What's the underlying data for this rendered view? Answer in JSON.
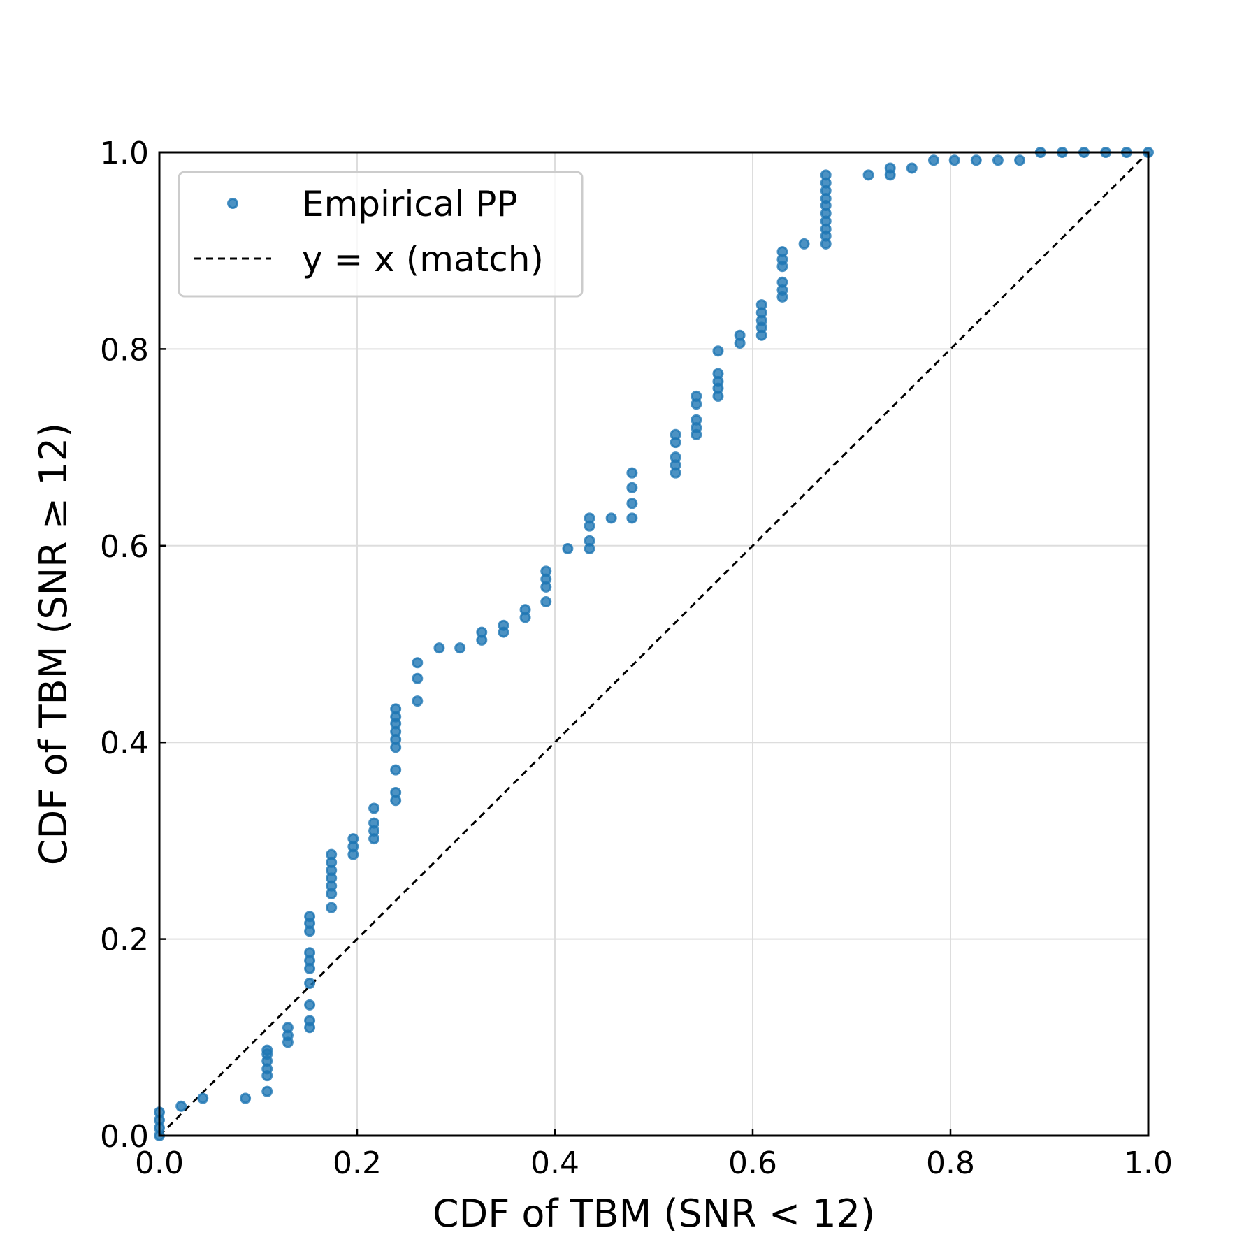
{
  "chart_data": {
    "type": "scatter",
    "title": "",
    "xlabel": "CDF of TBM (SNR < 12)",
    "ylabel": "CDF of TBM (SNR ≥ 12)",
    "xlim": [
      0,
      1
    ],
    "ylim": [
      0,
      1
    ],
    "xticks": [
      "0.0",
      "0.2",
      "0.4",
      "0.6",
      "0.8",
      "1.0"
    ],
    "yticks": [
      "0.0",
      "0.2",
      "0.4",
      "0.6",
      "0.8",
      "1.0"
    ],
    "grid": true,
    "legend_position": "top-left",
    "colors": {
      "points": "#1f77b4",
      "reference": "#000000",
      "grid": "#dddddd"
    },
    "series": [
      {
        "name": "Empirical PP",
        "kind": "points",
        "points": [
          [
            0.0,
            0.0
          ],
          [
            0.0,
            0.008
          ],
          [
            0.0,
            0.016
          ],
          [
            0.0,
            0.024
          ],
          [
            0.022,
            0.03
          ],
          [
            0.044,
            0.038
          ],
          [
            0.087,
            0.038
          ],
          [
            0.109,
            0.045
          ],
          [
            0.109,
            0.061
          ],
          [
            0.109,
            0.068
          ],
          [
            0.109,
            0.076
          ],
          [
            0.109,
            0.083
          ],
          [
            0.109,
            0.087
          ],
          [
            0.13,
            0.095
          ],
          [
            0.13,
            0.102
          ],
          [
            0.13,
            0.11
          ],
          [
            0.152,
            0.11
          ],
          [
            0.152,
            0.117
          ],
          [
            0.152,
            0.133
          ],
          [
            0.152,
            0.155
          ],
          [
            0.152,
            0.17
          ],
          [
            0.152,
            0.178
          ],
          [
            0.152,
            0.186
          ],
          [
            0.152,
            0.208
          ],
          [
            0.152,
            0.216
          ],
          [
            0.152,
            0.223
          ],
          [
            0.174,
            0.232
          ],
          [
            0.174,
            0.246
          ],
          [
            0.174,
            0.254
          ],
          [
            0.174,
            0.262
          ],
          [
            0.174,
            0.27
          ],
          [
            0.174,
            0.278
          ],
          [
            0.174,
            0.286
          ],
          [
            0.196,
            0.286
          ],
          [
            0.196,
            0.294
          ],
          [
            0.196,
            0.302
          ],
          [
            0.217,
            0.302
          ],
          [
            0.217,
            0.31
          ],
          [
            0.217,
            0.318
          ],
          [
            0.217,
            0.333
          ],
          [
            0.239,
            0.341
          ],
          [
            0.239,
            0.349
          ],
          [
            0.239,
            0.372
          ],
          [
            0.239,
            0.395
          ],
          [
            0.239,
            0.403
          ],
          [
            0.239,
            0.411
          ],
          [
            0.239,
            0.419
          ],
          [
            0.239,
            0.426
          ],
          [
            0.239,
            0.434
          ],
          [
            0.261,
            0.442
          ],
          [
            0.261,
            0.465
          ],
          [
            0.261,
            0.481
          ],
          [
            0.283,
            0.496
          ],
          [
            0.304,
            0.496
          ],
          [
            0.326,
            0.504
          ],
          [
            0.326,
            0.512
          ],
          [
            0.348,
            0.512
          ],
          [
            0.348,
            0.519
          ],
          [
            0.37,
            0.527
          ],
          [
            0.37,
            0.535
          ],
          [
            0.391,
            0.543
          ],
          [
            0.391,
            0.558
          ],
          [
            0.391,
            0.566
          ],
          [
            0.391,
            0.574
          ],
          [
            0.413,
            0.597
          ],
          [
            0.435,
            0.597
          ],
          [
            0.435,
            0.605
          ],
          [
            0.435,
            0.62
          ],
          [
            0.435,
            0.628
          ],
          [
            0.457,
            0.628
          ],
          [
            0.478,
            0.628
          ],
          [
            0.478,
            0.643
          ],
          [
            0.478,
            0.659
          ],
          [
            0.478,
            0.674
          ],
          [
            0.522,
            0.674
          ],
          [
            0.522,
            0.682
          ],
          [
            0.522,
            0.69
          ],
          [
            0.522,
            0.705
          ],
          [
            0.522,
            0.713
          ],
          [
            0.543,
            0.713
          ],
          [
            0.543,
            0.72
          ],
          [
            0.543,
            0.728
          ],
          [
            0.543,
            0.744
          ],
          [
            0.543,
            0.752
          ],
          [
            0.565,
            0.752
          ],
          [
            0.565,
            0.76
          ],
          [
            0.565,
            0.767
          ],
          [
            0.565,
            0.775
          ],
          [
            0.565,
            0.798
          ],
          [
            0.587,
            0.806
          ],
          [
            0.587,
            0.814
          ],
          [
            0.609,
            0.814
          ],
          [
            0.609,
            0.822
          ],
          [
            0.609,
            0.829
          ],
          [
            0.609,
            0.837
          ],
          [
            0.609,
            0.845
          ],
          [
            0.63,
            0.853
          ],
          [
            0.63,
            0.86
          ],
          [
            0.63,
            0.868
          ],
          [
            0.63,
            0.884
          ],
          [
            0.63,
            0.891
          ],
          [
            0.63,
            0.899
          ],
          [
            0.652,
            0.907
          ],
          [
            0.674,
            0.907
          ],
          [
            0.674,
            0.915
          ],
          [
            0.674,
            0.922
          ],
          [
            0.674,
            0.93
          ],
          [
            0.674,
            0.938
          ],
          [
            0.674,
            0.946
          ],
          [
            0.674,
            0.953
          ],
          [
            0.674,
            0.961
          ],
          [
            0.674,
            0.969
          ],
          [
            0.674,
            0.977
          ],
          [
            0.717,
            0.977
          ],
          [
            0.739,
            0.977
          ],
          [
            0.739,
            0.984
          ],
          [
            0.761,
            0.984
          ],
          [
            0.783,
            0.992
          ],
          [
            0.804,
            0.992
          ],
          [
            0.826,
            0.992
          ],
          [
            0.848,
            0.992
          ],
          [
            0.87,
            0.992
          ],
          [
            0.891,
            1.0
          ],
          [
            0.913,
            1.0
          ],
          [
            0.935,
            1.0
          ],
          [
            0.957,
            1.0
          ],
          [
            0.978,
            1.0
          ],
          [
            1.0,
            1.0
          ]
        ]
      },
      {
        "name": "y = x (match)",
        "kind": "line",
        "x": [
          0,
          1
        ],
        "y": [
          0,
          1
        ]
      }
    ]
  }
}
